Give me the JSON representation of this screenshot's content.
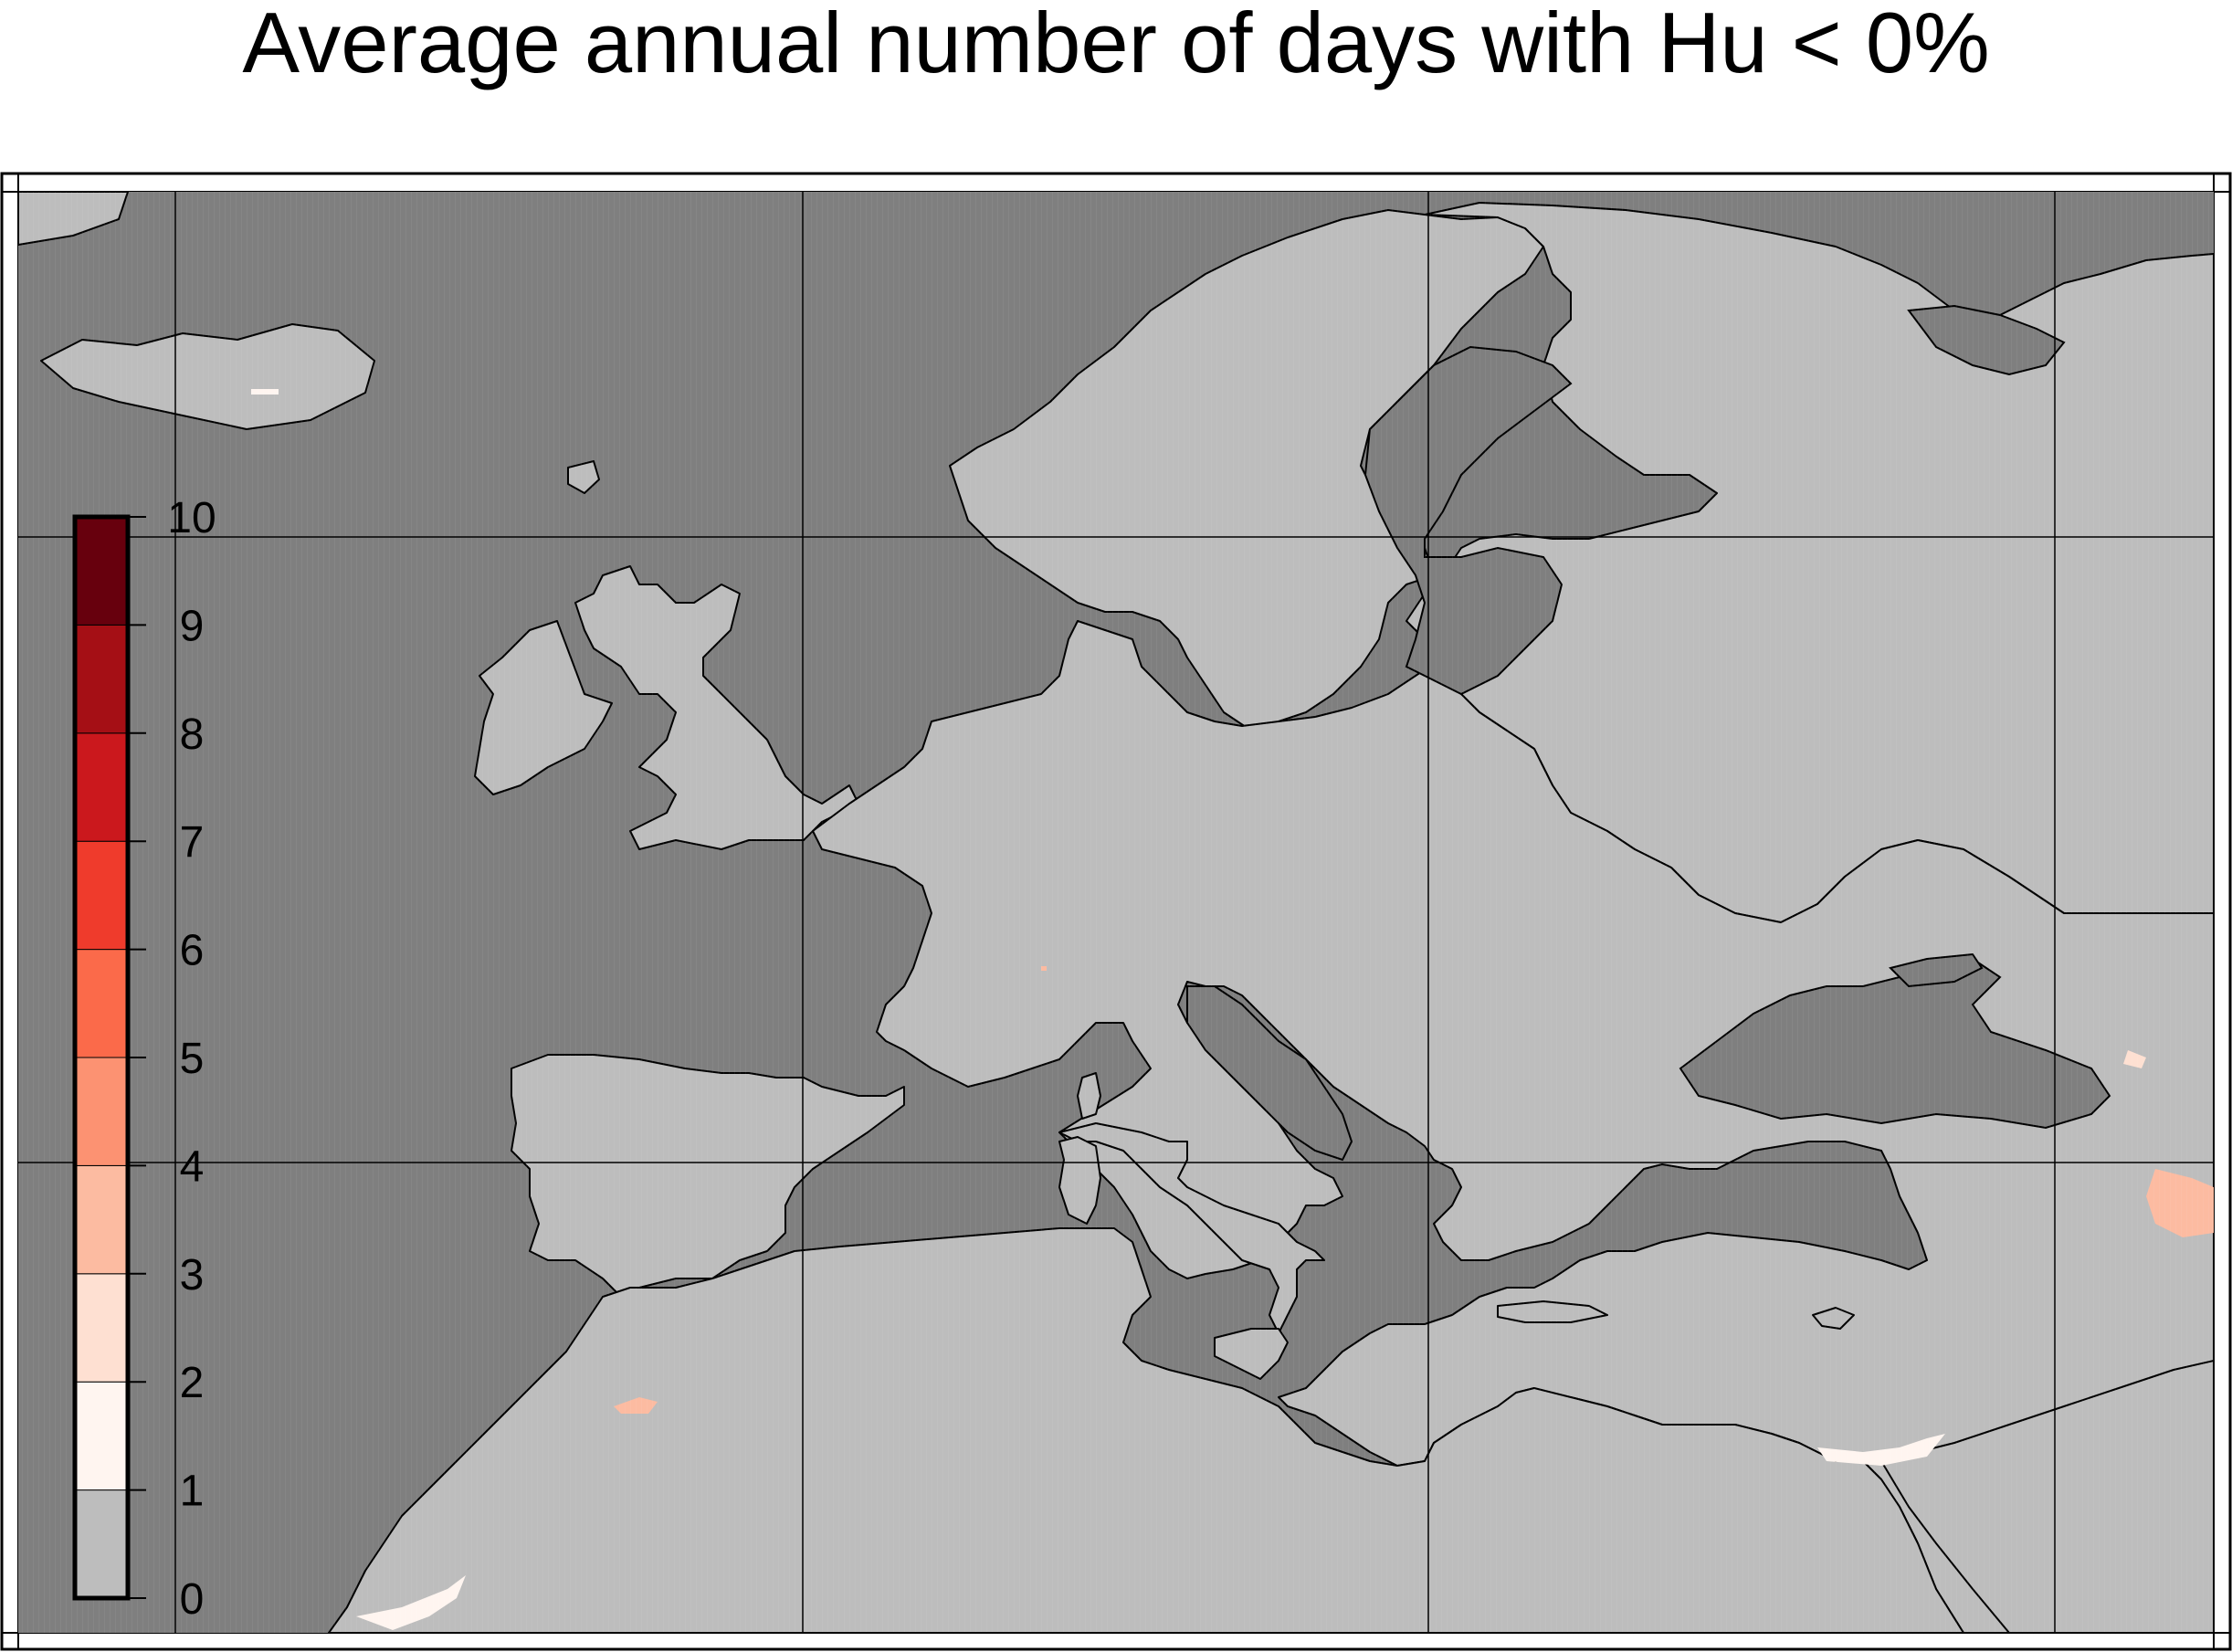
{
  "title": "Average annual number of days with Hu < 0%",
  "colors": {
    "sea": "#7f7f7f",
    "land": "#bdbdbd",
    "coast": "#000000",
    "frame": "#000000",
    "grid": "#000000"
  },
  "legend": {
    "ticks": [
      "0",
      "1",
      "2",
      "3",
      "4",
      "5",
      "6",
      "7",
      "8",
      "9",
      "10"
    ],
    "bins": [
      {
        "from": 0,
        "to": 1,
        "color": "#bdbdbd"
      },
      {
        "from": 1,
        "to": 2,
        "color": "#fff5f0"
      },
      {
        "from": 2,
        "to": 3,
        "color": "#fee0d2"
      },
      {
        "from": 3,
        "to": 4,
        "color": "#fcbba1"
      },
      {
        "from": 4,
        "to": 5,
        "color": "#fc9272"
      },
      {
        "from": 5,
        "to": 6,
        "color": "#fb6a4a"
      },
      {
        "from": 6,
        "to": 7,
        "color": "#ef3b2c"
      },
      {
        "from": 7,
        "to": 8,
        "color": "#cb181d"
      },
      {
        "from": 8,
        "to": 9,
        "color": "#a50f15"
      },
      {
        "from": 9,
        "to": 10,
        "color": "#67000d"
      }
    ]
  }
}
